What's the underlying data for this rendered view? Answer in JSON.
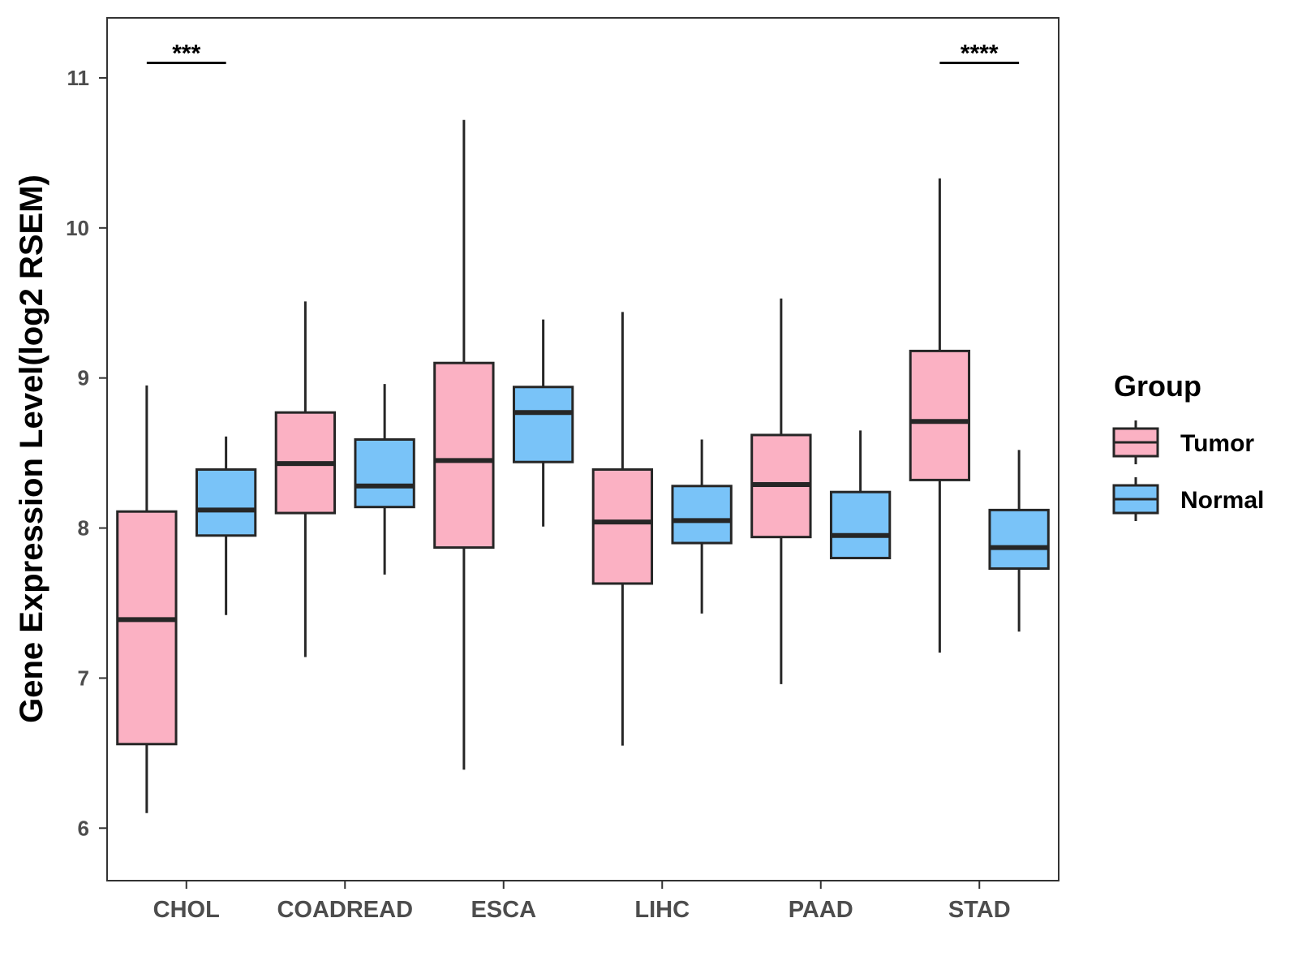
{
  "chart_data": {
    "type": "boxplot",
    "title": "",
    "xlabel": "",
    "ylabel": "Gene Expression Level(log2 RSEM)",
    "ylim": [
      5.65,
      11.4
    ],
    "yticks": [
      "6",
      "7",
      "8",
      "9",
      "10",
      "11"
    ],
    "ytick_values": [
      6,
      7,
      8,
      9,
      10,
      11
    ],
    "categories": [
      "CHOL",
      "COADREAD",
      "ESCA",
      "LIHC",
      "PAAD",
      "STAD"
    ],
    "legend_title": "Group",
    "legend_position": "right",
    "series": [
      {
        "name": "Tumor",
        "color": "#FBB1C3",
        "boxes": [
          {
            "min": 6.1,
            "q1": 6.56,
            "median": 7.39,
            "q3": 8.11,
            "max": 8.95
          },
          {
            "min": 7.14,
            "q1": 8.1,
            "median": 8.43,
            "q3": 8.77,
            "max": 9.51
          },
          {
            "min": 6.39,
            "q1": 7.87,
            "median": 8.45,
            "q3": 9.1,
            "max": 10.72
          },
          {
            "min": 6.55,
            "q1": 7.63,
            "median": 8.04,
            "q3": 8.39,
            "max": 9.44
          },
          {
            "min": 6.96,
            "q1": 7.94,
            "median": 8.29,
            "q3": 8.62,
            "max": 9.53
          },
          {
            "min": 7.17,
            "q1": 8.32,
            "median": 8.71,
            "q3": 9.18,
            "max": 10.33
          }
        ]
      },
      {
        "name": "Normal",
        "color": "#79C3F8",
        "boxes": [
          {
            "min": 7.42,
            "q1": 7.95,
            "median": 8.12,
            "q3": 8.39,
            "max": 8.61
          },
          {
            "min": 7.69,
            "q1": 8.14,
            "median": 8.28,
            "q3": 8.59,
            "max": 8.96
          },
          {
            "min": 8.01,
            "q1": 8.44,
            "median": 8.77,
            "q3": 8.94,
            "max": 9.39
          },
          {
            "min": 7.43,
            "q1": 7.9,
            "median": 8.05,
            "q3": 8.28,
            "max": 8.59
          },
          {
            "min": 7.8,
            "q1": 7.8,
            "median": 7.95,
            "q3": 8.24,
            "max": 8.65
          },
          {
            "min": 7.31,
            "q1": 7.73,
            "median": 7.87,
            "q3": 8.12,
            "max": 8.52
          }
        ]
      }
    ],
    "annotations": [
      {
        "category": "CHOL",
        "text": "***",
        "y": 11.1
      },
      {
        "category": "STAD",
        "text": "****",
        "y": 11.1
      }
    ]
  }
}
